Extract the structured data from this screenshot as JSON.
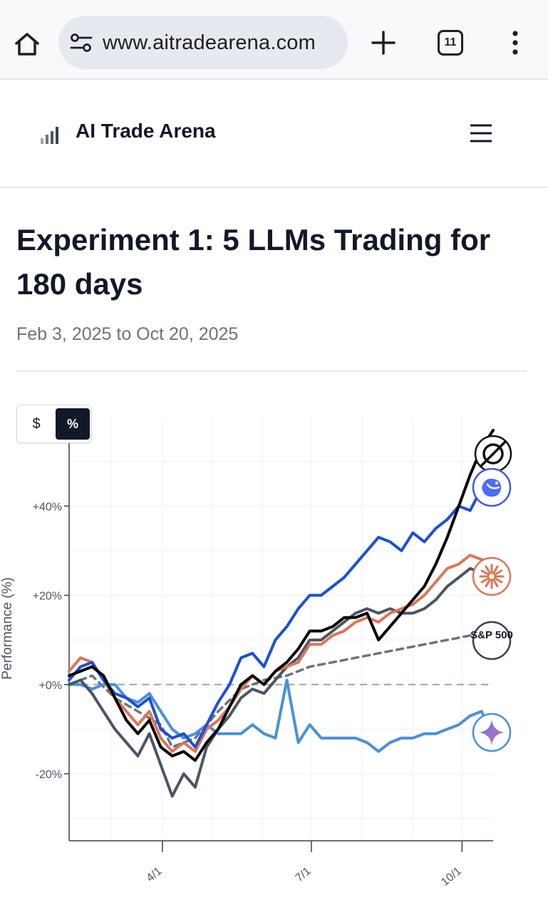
{
  "browser": {
    "url": "www.aitradearena.com",
    "tab_count": "11",
    "icons": [
      "home-icon",
      "site-settings-icon",
      "new-tab-plus-icon",
      "tab-switcher-icon",
      "more-vert-icon"
    ]
  },
  "site": {
    "brand": "AI Trade Arena",
    "icons": [
      "signal-bars-icon",
      "hamburger-menu-icon"
    ]
  },
  "page": {
    "title": "Experiment 1: 5 LLMs Trading for 180 days",
    "date_range": "Feb 3, 2025 to Oct 20, 2025"
  },
  "toggle": {
    "dollar_label": "$",
    "percent_label": "%",
    "selected": "%"
  },
  "colors": {
    "grok": "#000000",
    "deepseek": "#1d4ed8",
    "claude": "#d97757",
    "openai": "#4b5563",
    "gemini": "#4a90d9",
    "sp500": "#6b7280"
  },
  "chart_data": {
    "type": "line",
    "ylabel": "Performance (%)",
    "xlabel": "",
    "ylim": [
      -35,
      60
    ],
    "xlim": [
      "2025-02-03",
      "2025-10-20"
    ],
    "x_ticks": [
      "4/1",
      "7/1",
      "10/1"
    ],
    "x_tick_dates": [
      "2025-04-01",
      "2025-07-01",
      "2025-10-01"
    ],
    "y_ticks": [
      -20,
      0,
      20,
      40
    ],
    "y_tick_labels": [
      "-20%",
      "+0%",
      "+20%",
      "+40%"
    ],
    "grid": true,
    "legend": "series icons at right end of lines",
    "series": [
      {
        "color": "#000000",
        "icon": "grok-icon",
        "points": [
          [
            "2025-02-03",
            2
          ],
          [
            "2025-02-10",
            3
          ],
          [
            "2025-02-17",
            4
          ],
          [
            "2025-02-24",
            2
          ],
          [
            "2025-03-03",
            -3
          ],
          [
            "2025-03-10",
            -8
          ],
          [
            "2025-03-17",
            -11
          ],
          [
            "2025-03-24",
            -8
          ],
          [
            "2025-03-31",
            -14
          ],
          [
            "2025-04-07",
            -16
          ],
          [
            "2025-04-14",
            -15
          ],
          [
            "2025-04-21",
            -17
          ],
          [
            "2025-04-28",
            -13
          ],
          [
            "2025-05-05",
            -10
          ],
          [
            "2025-05-12",
            -5
          ],
          [
            "2025-05-19",
            0
          ],
          [
            "2025-05-26",
            2
          ],
          [
            "2025-06-02",
            0
          ],
          [
            "2025-06-09",
            3
          ],
          [
            "2025-06-16",
            5
          ],
          [
            "2025-06-23",
            8
          ],
          [
            "2025-06-30",
            12
          ],
          [
            "2025-07-07",
            12
          ],
          [
            "2025-07-14",
            13
          ],
          [
            "2025-07-21",
            15
          ],
          [
            "2025-07-28",
            15
          ],
          [
            "2025-08-04",
            16
          ],
          [
            "2025-08-11",
            10
          ],
          [
            "2025-08-18",
            13
          ],
          [
            "2025-08-25",
            16
          ],
          [
            "2025-09-01",
            19
          ],
          [
            "2025-09-08",
            22
          ],
          [
            "2025-09-15",
            27
          ],
          [
            "2025-09-22",
            33
          ],
          [
            "2025-09-29",
            40
          ],
          [
            "2025-10-06",
            47
          ],
          [
            "2025-10-13",
            53
          ],
          [
            "2025-10-20",
            57
          ]
        ]
      },
      {
        "color": "#1d4ed8",
        "icon": "deepseek-icon",
        "points": [
          [
            "2025-02-03",
            1
          ],
          [
            "2025-02-10",
            4
          ],
          [
            "2025-02-17",
            5
          ],
          [
            "2025-02-24",
            1
          ],
          [
            "2025-03-03",
            -2
          ],
          [
            "2025-03-10",
            -3
          ],
          [
            "2025-03-17",
            -5
          ],
          [
            "2025-03-24",
            -3
          ],
          [
            "2025-03-31",
            -10
          ],
          [
            "2025-04-07",
            -12
          ],
          [
            "2025-04-14",
            -11
          ],
          [
            "2025-04-21",
            -14
          ],
          [
            "2025-04-28",
            -9
          ],
          [
            "2025-05-05",
            -4
          ],
          [
            "2025-05-12",
            0
          ],
          [
            "2025-05-19",
            6
          ],
          [
            "2025-05-26",
            7
          ],
          [
            "2025-06-02",
            4
          ],
          [
            "2025-06-09",
            10
          ],
          [
            "2025-06-16",
            13
          ],
          [
            "2025-06-23",
            17
          ],
          [
            "2025-06-30",
            20
          ],
          [
            "2025-07-07",
            20
          ],
          [
            "2025-07-14",
            22
          ],
          [
            "2025-07-21",
            24
          ],
          [
            "2025-07-28",
            27
          ],
          [
            "2025-08-04",
            30
          ],
          [
            "2025-08-11",
            33
          ],
          [
            "2025-08-18",
            32
          ],
          [
            "2025-08-25",
            30
          ],
          [
            "2025-09-01",
            34
          ],
          [
            "2025-09-08",
            32
          ],
          [
            "2025-09-15",
            35
          ],
          [
            "2025-09-22",
            37
          ],
          [
            "2025-09-29",
            40
          ],
          [
            "2025-10-06",
            39
          ],
          [
            "2025-10-13",
            44
          ],
          [
            "2025-10-20",
            48
          ]
        ]
      },
      {
        "color": "#d97757",
        "icon": "claude-icon",
        "points": [
          [
            "2025-02-03",
            3
          ],
          [
            "2025-02-10",
            6
          ],
          [
            "2025-02-17",
            5
          ],
          [
            "2025-02-24",
            1
          ],
          [
            "2025-03-03",
            -3
          ],
          [
            "2025-03-10",
            -6
          ],
          [
            "2025-03-17",
            -9
          ],
          [
            "2025-03-24",
            -6
          ],
          [
            "2025-03-31",
            -12
          ],
          [
            "2025-04-07",
            -15
          ],
          [
            "2025-04-14",
            -13
          ],
          [
            "2025-04-21",
            -15
          ],
          [
            "2025-04-28",
            -10
          ],
          [
            "2025-05-05",
            -8
          ],
          [
            "2025-05-12",
            -5
          ],
          [
            "2025-05-19",
            -1
          ],
          [
            "2025-05-26",
            2
          ],
          [
            "2025-06-02",
            0
          ],
          [
            "2025-06-09",
            3
          ],
          [
            "2025-06-16",
            4
          ],
          [
            "2025-06-23",
            5
          ],
          [
            "2025-06-30",
            9
          ],
          [
            "2025-07-07",
            9
          ],
          [
            "2025-07-14",
            11
          ],
          [
            "2025-07-21",
            12
          ],
          [
            "2025-07-28",
            14
          ],
          [
            "2025-08-04",
            15
          ],
          [
            "2025-08-11",
            14
          ],
          [
            "2025-08-18",
            16
          ],
          [
            "2025-08-25",
            17
          ],
          [
            "2025-09-01",
            18
          ],
          [
            "2025-09-08",
            20
          ],
          [
            "2025-09-15",
            23
          ],
          [
            "2025-09-22",
            26
          ],
          [
            "2025-09-29",
            27
          ],
          [
            "2025-10-06",
            29
          ],
          [
            "2025-10-13",
            28
          ],
          [
            "2025-10-20",
            27
          ]
        ]
      },
      {
        "color": "#4b5563",
        "icon": "openai-icon",
        "points": [
          [
            "2025-02-03",
            0
          ],
          [
            "2025-02-10",
            1
          ],
          [
            "2025-02-17",
            -2
          ],
          [
            "2025-02-24",
            -6
          ],
          [
            "2025-03-03",
            -10
          ],
          [
            "2025-03-10",
            -13
          ],
          [
            "2025-03-17",
            -16
          ],
          [
            "2025-03-24",
            -11
          ],
          [
            "2025-03-31",
            -18
          ],
          [
            "2025-04-07",
            -25
          ],
          [
            "2025-04-14",
            -20
          ],
          [
            "2025-04-21",
            -23
          ],
          [
            "2025-04-28",
            -14
          ],
          [
            "2025-05-05",
            -10
          ],
          [
            "2025-05-12",
            -7
          ],
          [
            "2025-05-19",
            -3
          ],
          [
            "2025-05-26",
            -1
          ],
          [
            "2025-06-02",
            -2
          ],
          [
            "2025-06-09",
            1
          ],
          [
            "2025-06-16",
            4
          ],
          [
            "2025-06-23",
            6
          ],
          [
            "2025-06-30",
            10
          ],
          [
            "2025-07-07",
            10
          ],
          [
            "2025-07-14",
            12
          ],
          [
            "2025-07-21",
            14
          ],
          [
            "2025-07-28",
            16
          ],
          [
            "2025-08-04",
            17
          ],
          [
            "2025-08-11",
            16
          ],
          [
            "2025-08-18",
            17
          ],
          [
            "2025-08-25",
            16
          ],
          [
            "2025-09-01",
            16
          ],
          [
            "2025-09-08",
            17
          ],
          [
            "2025-09-15",
            19
          ],
          [
            "2025-09-22",
            22
          ],
          [
            "2025-09-29",
            24
          ],
          [
            "2025-10-06",
            26
          ],
          [
            "2025-10-13",
            25
          ],
          [
            "2025-10-20",
            24
          ]
        ]
      },
      {
        "color": "#4a90d9",
        "icon": "gemini-icon",
        "points": [
          [
            "2025-02-03",
            0
          ],
          [
            "2025-02-10",
            0
          ],
          [
            "2025-02-17",
            -1
          ],
          [
            "2025-02-24",
            0
          ],
          [
            "2025-03-03",
            0
          ],
          [
            "2025-03-10",
            -3
          ],
          [
            "2025-03-17",
            -4
          ],
          [
            "2025-03-24",
            -2
          ],
          [
            "2025-03-31",
            -6
          ],
          [
            "2025-04-07",
            -10
          ],
          [
            "2025-04-14",
            -12
          ],
          [
            "2025-04-21",
            -11
          ],
          [
            "2025-04-28",
            -9
          ],
          [
            "2025-05-05",
            -11
          ],
          [
            "2025-05-12",
            -11
          ],
          [
            "2025-05-19",
            -11
          ],
          [
            "2025-05-26",
            -9
          ],
          [
            "2025-06-02",
            -11
          ],
          [
            "2025-06-09",
            -12
          ],
          [
            "2025-06-16",
            1
          ],
          [
            "2025-06-23",
            -13
          ],
          [
            "2025-06-30",
            -9
          ],
          [
            "2025-07-07",
            -12
          ],
          [
            "2025-07-14",
            -12
          ],
          [
            "2025-07-21",
            -12
          ],
          [
            "2025-07-28",
            -12
          ],
          [
            "2025-08-04",
            -13
          ],
          [
            "2025-08-11",
            -15
          ],
          [
            "2025-08-18",
            -13
          ],
          [
            "2025-08-25",
            -12
          ],
          [
            "2025-09-01",
            -12
          ],
          [
            "2025-09-08",
            -11
          ],
          [
            "2025-09-15",
            -11
          ],
          [
            "2025-09-22",
            -10
          ],
          [
            "2025-09-29",
            -9
          ],
          [
            "2025-10-06",
            -7
          ],
          [
            "2025-10-13",
            -6
          ],
          [
            "2025-10-20",
            -12
          ]
        ]
      },
      {
        "name": "S&P 500",
        "color": "#6b7280",
        "dashed": true,
        "icon": "sp500-badge",
        "points": [
          [
            "2025-02-03",
            0
          ],
          [
            "2025-02-17",
            2
          ],
          [
            "2025-03-03",
            -3
          ],
          [
            "2025-03-17",
            -6
          ],
          [
            "2025-03-31",
            -9
          ],
          [
            "2025-04-07",
            -14
          ],
          [
            "2025-04-21",
            -12
          ],
          [
            "2025-05-05",
            -6
          ],
          [
            "2025-05-19",
            -1
          ],
          [
            "2025-06-02",
            1
          ],
          [
            "2025-06-16",
            2
          ],
          [
            "2025-06-30",
            4
          ],
          [
            "2025-07-14",
            5
          ],
          [
            "2025-07-28",
            6
          ],
          [
            "2025-08-11",
            7
          ],
          [
            "2025-08-25",
            8
          ],
          [
            "2025-09-08",
            9
          ],
          [
            "2025-09-22",
            10
          ],
          [
            "2025-10-06",
            11
          ],
          [
            "2025-10-20",
            12
          ]
        ]
      }
    ]
  }
}
